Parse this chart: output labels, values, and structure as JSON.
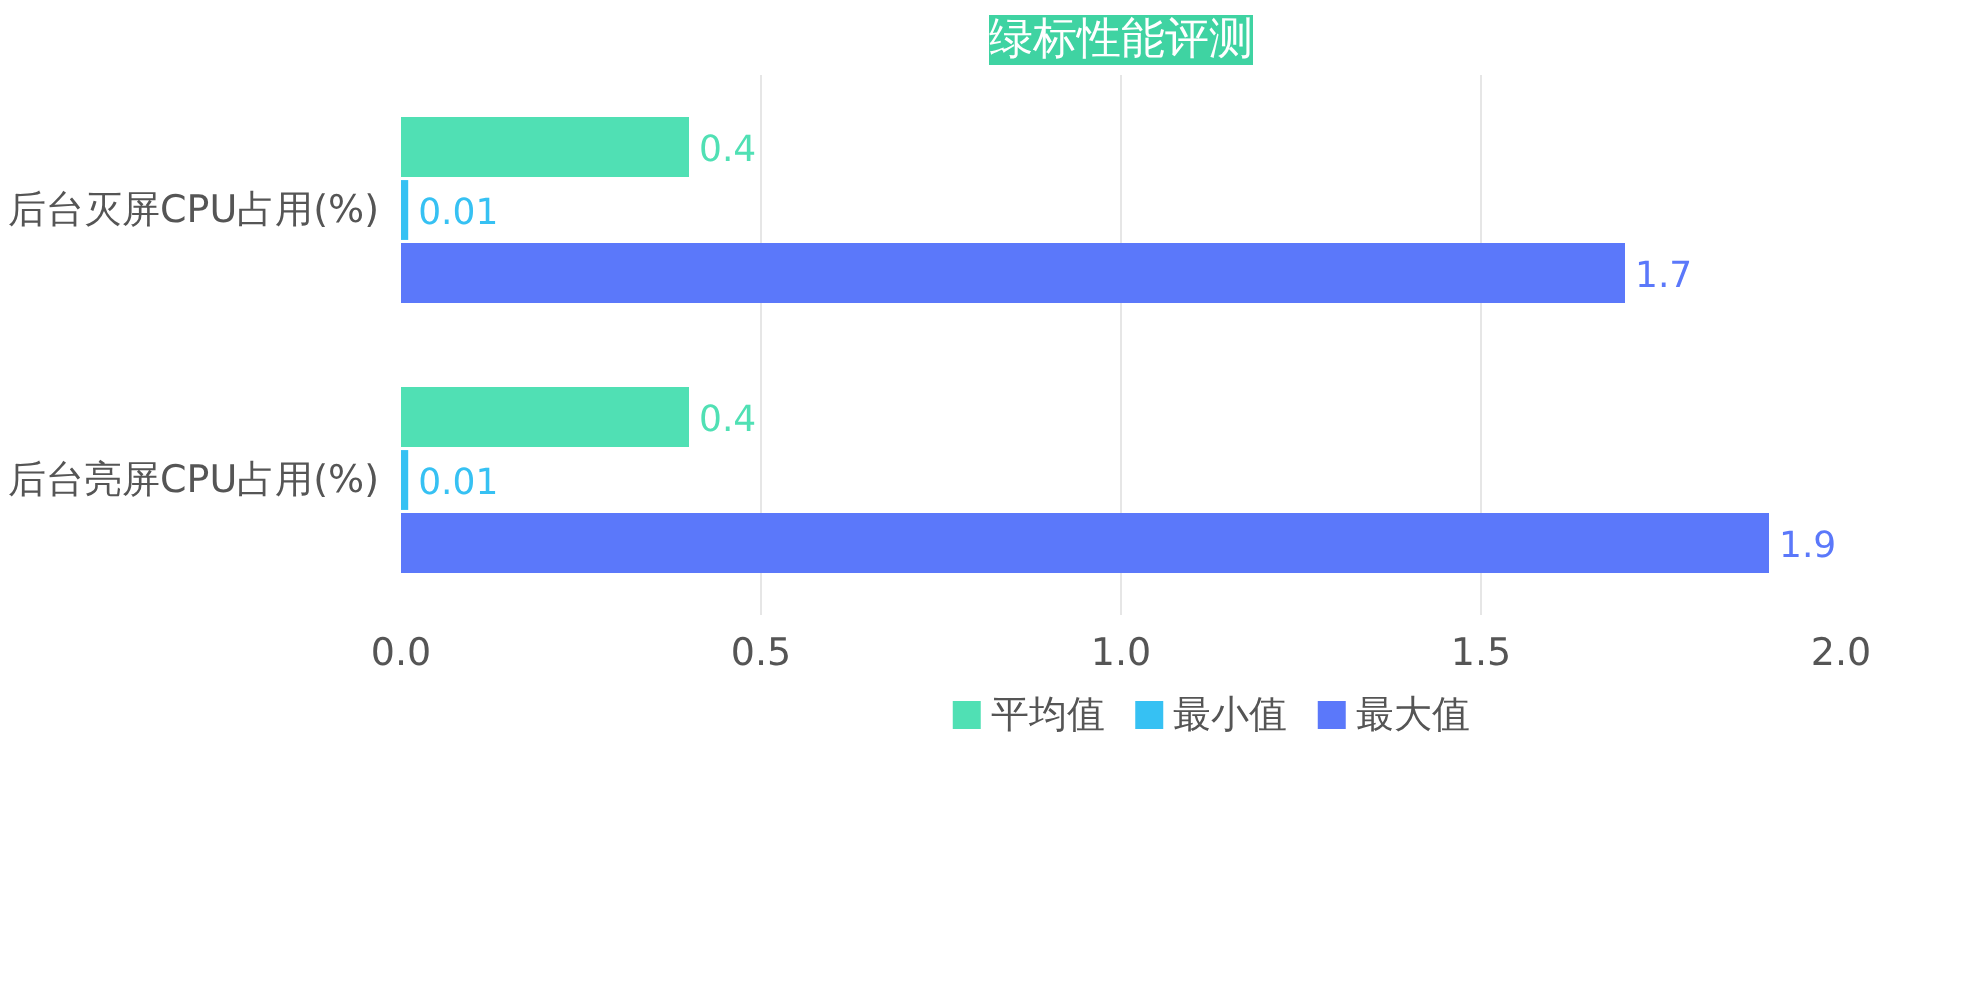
{
  "chart_data": {
    "type": "bar",
    "orientation": "horizontal",
    "title": "绿标性能评测",
    "categories": [
      "后台灭屏CPU占用(%)",
      "后台亮屏CPU占用(%)"
    ],
    "series": [
      {
        "name": "平均值",
        "color": "#50e0b4",
        "values": [
          0.4,
          0.4
        ]
      },
      {
        "name": "最小值",
        "color": "#36c1f3",
        "values": [
          0.01,
          0.01
        ]
      },
      {
        "name": "最大值",
        "color": "#5b78fa",
        "values": [
          1.7,
          1.9
        ]
      }
    ],
    "xlim": [
      0,
      2.0
    ],
    "xticks": [
      {
        "value": 0,
        "label": "0.0"
      },
      {
        "value": 0.5,
        "label": "0.5"
      },
      {
        "value": 1,
        "label": "1.0"
      },
      {
        "value": 1.5,
        "label": "1.5"
      },
      {
        "value": 2,
        "label": "2.0"
      }
    ],
    "grid": "x",
    "legend": "bottom",
    "data_labels": true
  }
}
